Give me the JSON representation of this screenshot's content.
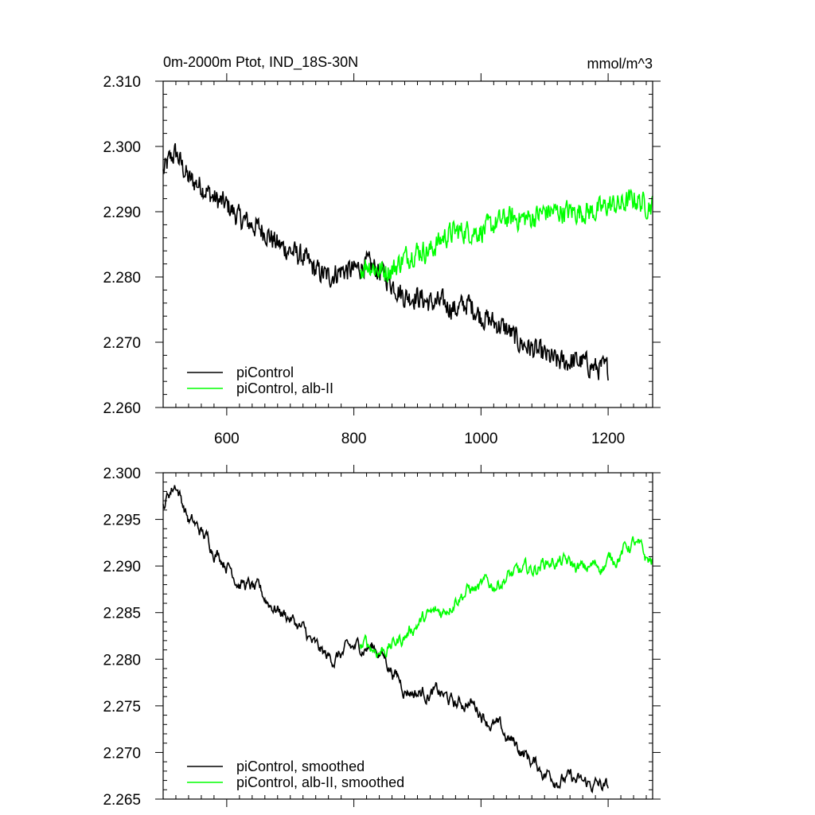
{
  "chart_data": [
    {
      "type": "line",
      "title": "0m-2000m Ptot, IND_18S-30N",
      "units": "mmol/m^3",
      "xlim": [
        500,
        1270
      ],
      "ylim": [
        2.26,
        2.31
      ],
      "x_ticks": [
        600,
        800,
        1000,
        1200
      ],
      "x_tick_labels": [
        "600",
        "800",
        "1000",
        "1200"
      ],
      "y_ticks": [
        2.26,
        2.27,
        2.28,
        2.29,
        2.3,
        2.31
      ],
      "y_tick_labels": [
        "2.260",
        "2.270",
        "2.280",
        "2.290",
        "2.300",
        "2.310"
      ],
      "legend_position": "bottom-left",
      "series": [
        {
          "name": "piControl",
          "color": "#000000",
          "noise": 0.0028,
          "x": [
            500,
            510,
            520,
            530,
            540,
            560,
            580,
            600,
            620,
            640,
            660,
            680,
            700,
            720,
            740,
            760,
            780,
            800,
            820,
            840,
            860,
            880,
            900,
            920,
            940,
            960,
            980,
            1000,
            1020,
            1040,
            1060,
            1080,
            1100,
            1120,
            1140,
            1160,
            1180,
            1200
          ],
          "values": [
            2.296,
            2.298,
            2.299,
            2.297,
            2.295,
            2.294,
            2.292,
            2.291,
            2.289,
            2.288,
            2.287,
            2.285,
            2.284,
            2.283,
            2.281,
            2.28,
            2.281,
            2.281,
            2.282,
            2.281,
            2.279,
            2.277,
            2.277,
            2.276,
            2.276,
            2.275,
            2.276,
            2.274,
            2.273,
            2.272,
            2.27,
            2.269,
            2.268,
            2.267,
            2.267,
            2.267,
            2.266,
            2.266
          ]
        },
        {
          "name": "piControl, alb-II",
          "color": "#00ff00",
          "noise": 0.0028,
          "x": [
            810,
            820,
            840,
            860,
            880,
            900,
            920,
            940,
            960,
            980,
            1000,
            1020,
            1040,
            1060,
            1080,
            1100,
            1120,
            1140,
            1160,
            1180,
            1200,
            1220,
            1240,
            1260,
            1270
          ],
          "values": [
            2.281,
            2.282,
            2.281,
            2.281,
            2.283,
            2.284,
            2.284,
            2.286,
            2.287,
            2.287,
            2.287,
            2.288,
            2.289,
            2.289,
            2.289,
            2.29,
            2.29,
            2.29,
            2.29,
            2.29,
            2.291,
            2.291,
            2.292,
            2.291,
            2.291
          ]
        }
      ]
    },
    {
      "type": "line",
      "xlim": [
        500,
        1270
      ],
      "ylim": [
        2.265,
        2.3
      ],
      "x_ticks": [
        600,
        800,
        1000,
        1200
      ],
      "y_ticks": [
        2.265,
        2.27,
        2.275,
        2.28,
        2.285,
        2.29,
        2.295,
        2.3
      ],
      "y_tick_labels": [
        "2.265",
        "2.270",
        "2.275",
        "2.280",
        "2.285",
        "2.290",
        "2.295",
        "2.300"
      ],
      "legend_position": "bottom-left",
      "series": [
        {
          "name": "piControl, smoothed",
          "color": "#000000",
          "noise": 0.0012,
          "x": [
            500,
            510,
            520,
            530,
            540,
            560,
            580,
            600,
            620,
            640,
            660,
            680,
            700,
            720,
            740,
            760,
            780,
            800,
            820,
            840,
            860,
            880,
            900,
            920,
            940,
            960,
            980,
            1000,
            1020,
            1040,
            1060,
            1080,
            1100,
            1120,
            1140,
            1160,
            1180,
            1200
          ],
          "values": [
            2.2965,
            2.298,
            2.299,
            2.297,
            2.295,
            2.2935,
            2.292,
            2.2905,
            2.2885,
            2.2875,
            2.2865,
            2.2855,
            2.2845,
            2.283,
            2.281,
            2.28,
            2.2805,
            2.281,
            2.2815,
            2.281,
            2.279,
            2.277,
            2.2765,
            2.2765,
            2.276,
            2.275,
            2.2755,
            2.2745,
            2.273,
            2.2715,
            2.2705,
            2.269,
            2.268,
            2.2675,
            2.267,
            2.2665,
            2.2665,
            2.266
          ]
        },
        {
          "name": "piControl, alb-II, smoothed",
          "color": "#00ff00",
          "noise": 0.0012,
          "x": [
            810,
            820,
            840,
            860,
            880,
            900,
            920,
            940,
            960,
            980,
            1000,
            1020,
            1040,
            1060,
            1080,
            1100,
            1120,
            1140,
            1160,
            1180,
            1200,
            1220,
            1240,
            1260,
            1270
          ],
          "values": [
            2.2812,
            2.2815,
            2.281,
            2.2815,
            2.2825,
            2.284,
            2.2845,
            2.285,
            2.287,
            2.2875,
            2.2875,
            2.288,
            2.289,
            2.289,
            2.2895,
            2.2905,
            2.2905,
            2.29,
            2.2895,
            2.29,
            2.2905,
            2.2915,
            2.2925,
            2.2905,
            2.2905
          ]
        }
      ]
    }
  ]
}
